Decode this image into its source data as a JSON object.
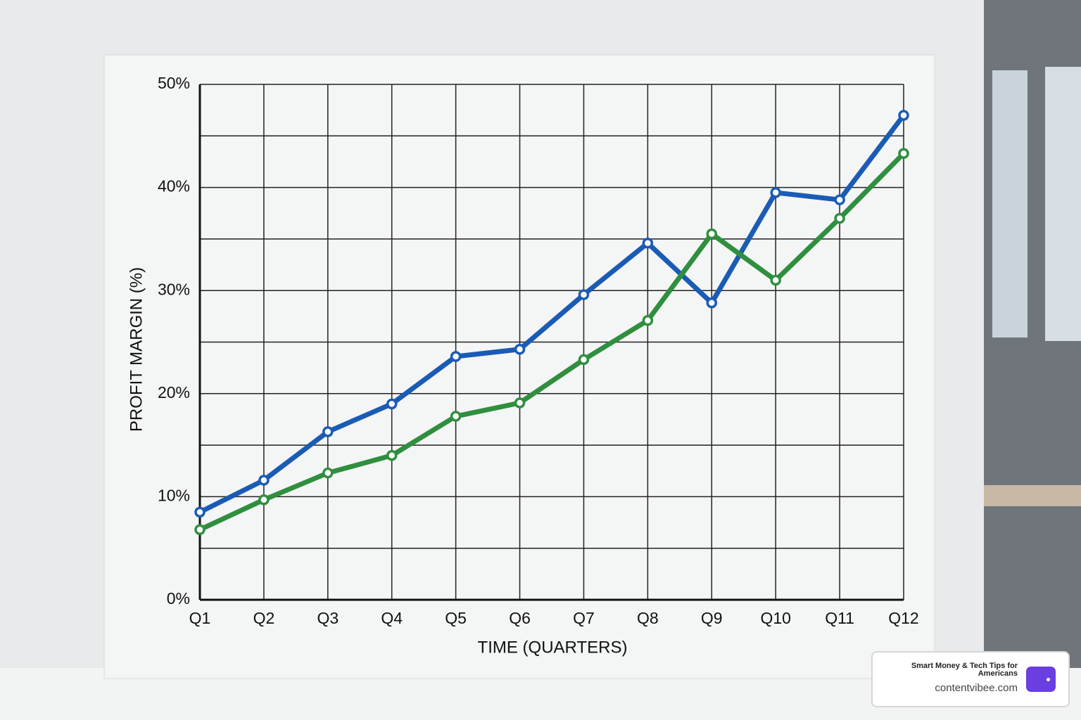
{
  "chart_data": {
    "type": "line",
    "x_label": "TIME (QUARTERS)",
    "y_label": "PROFIT MARGIN (%)",
    "categories": [
      "Q1",
      "Q2",
      "Q3",
      "Q4",
      "Q5",
      "Q6",
      "Q7",
      "Q8",
      "Q9",
      "Q10",
      "Q11",
      "Q12"
    ],
    "series": [
      {
        "color": "#1a5bb5",
        "values": [
          8.5,
          11.6,
          16.3,
          19,
          23.6,
          24.3,
          29.6,
          34.6,
          28.8,
          39.5,
          38.8,
          47
        ]
      },
      {
        "color": "#2f8f3f",
        "values": [
          6.8,
          9.7,
          12.3,
          14,
          17.8,
          19.1,
          23.3,
          27.1,
          35.5,
          31,
          37,
          43.3
        ]
      }
    ],
    "ylim": [
      0,
      50
    ],
    "yticks": [
      {
        "value": 0,
        "label": "0%"
      },
      {
        "value": 10,
        "label": "10%"
      },
      {
        "value": 20,
        "label": "20%"
      },
      {
        "value": 30,
        "label": "30%"
      },
      {
        "value": 40,
        "label": "40%"
      },
      {
        "value": 50,
        "label": "50%"
      }
    ],
    "ygrid": [
      5,
      15,
      25,
      35,
      45
    ],
    "grid": true
  },
  "badge": {
    "tagline": "Smart Money & Tech Tips for Americans",
    "site": "contentvibee.com"
  }
}
